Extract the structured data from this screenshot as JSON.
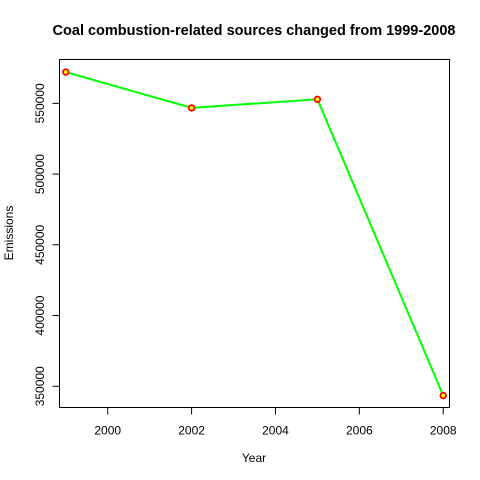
{
  "chart_data": {
    "type": "line",
    "title": "Coal combustion-related sources changed from 1999-2008",
    "xlabel": "Year",
    "ylabel": "Emissions",
    "x": [
      1999,
      2002,
      2005,
      2008
    ],
    "series": [
      {
        "values": [
          572126,
          546789,
          552881,
          343432
        ],
        "line_color": "#00ff00",
        "marker_color": "#ff0000",
        "marker_fill": "#ffff00"
      }
    ],
    "xlim": [
      1998.85,
      2008.15
    ],
    "ylim": [
      335000,
      581000
    ],
    "x_ticks": [
      2000,
      2002,
      2004,
      2006,
      2008
    ],
    "y_ticks": [
      350000,
      400000,
      450000,
      500000,
      550000
    ],
    "x_tick_labels": [
      "2000",
      "2002",
      "2004",
      "2006",
      "2008"
    ],
    "y_tick_labels": [
      "350000",
      "400000",
      "450000",
      "500000",
      "550000"
    ],
    "grid": false,
    "legend": "none"
  }
}
